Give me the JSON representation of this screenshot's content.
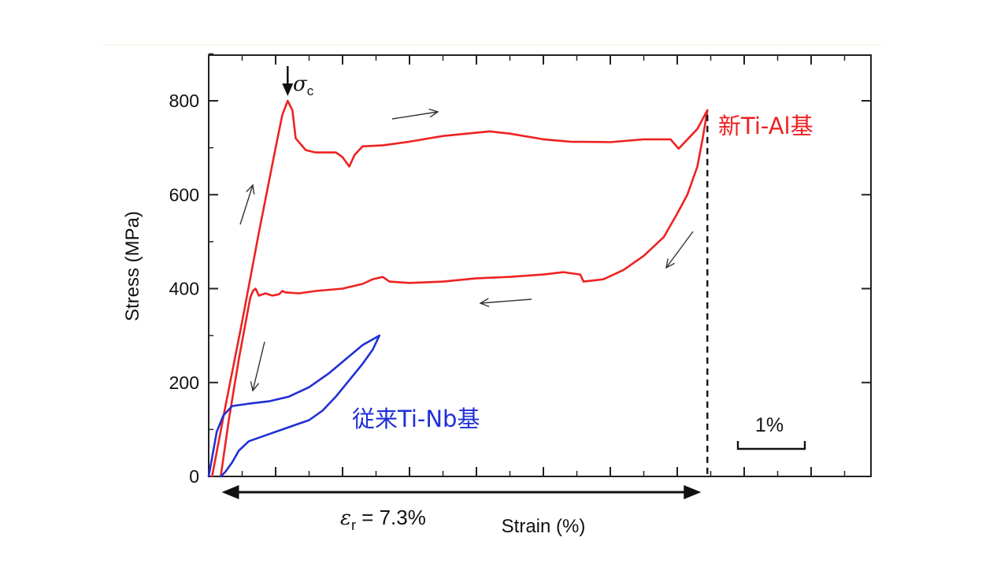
{
  "chart_data": {
    "type": "line",
    "xlabel": "Strain (%)",
    "ylabel": "Stress (MPa)",
    "ylim": [
      0,
      900
    ],
    "yticks": [
      0,
      200,
      400,
      600,
      800
    ],
    "xlim": [
      0,
      10
    ],
    "x_minor_ticks_step": 0.5,
    "x_major_ticks_step": 1,
    "grid": false,
    "scale_bar_label": "1%",
    "sigma_symbol": "σ",
    "sigma_subscript": "c",
    "strain_label_symbol": "ε",
    "strain_label_subscript": "r",
    "strain_label_value": " = 7.3%",
    "strain_span": [
      0.1,
      7.45
    ],
    "unload_line_x": 7.45,
    "series": [
      {
        "name": "新Ti-Al基",
        "color": "#ee2222",
        "points": [
          [
            0.05,
            0
          ],
          [
            0.25,
            150
          ],
          [
            0.5,
            330
          ],
          [
            0.75,
            520
          ],
          [
            1.0,
            700
          ],
          [
            1.1,
            770
          ],
          [
            1.18,
            800
          ],
          [
            1.25,
            780
          ],
          [
            1.3,
            720
          ],
          [
            1.45,
            695
          ],
          [
            1.6,
            690
          ],
          [
            1.9,
            690
          ],
          [
            2.0,
            680
          ],
          [
            2.1,
            660
          ],
          [
            2.18,
            685
          ],
          [
            2.3,
            703
          ],
          [
            2.6,
            705
          ],
          [
            3.0,
            713
          ],
          [
            3.5,
            725
          ],
          [
            4.2,
            735
          ],
          [
            4.5,
            730
          ],
          [
            5.0,
            718
          ],
          [
            5.4,
            713
          ],
          [
            6.0,
            712
          ],
          [
            6.5,
            718
          ],
          [
            6.9,
            718
          ],
          [
            7.02,
            698
          ],
          [
            7.1,
            710
          ],
          [
            7.3,
            740
          ],
          [
            7.45,
            780
          ],
          [
            7.38,
            720
          ],
          [
            7.3,
            660
          ],
          [
            7.15,
            600
          ],
          [
            7.0,
            560
          ],
          [
            6.8,
            510
          ],
          [
            6.5,
            470
          ],
          [
            6.2,
            440
          ],
          [
            5.9,
            420
          ],
          [
            5.6,
            415
          ],
          [
            5.55,
            430
          ],
          [
            5.3,
            435
          ],
          [
            5.0,
            430
          ],
          [
            4.5,
            425
          ],
          [
            4.0,
            422
          ],
          [
            3.5,
            415
          ],
          [
            3.0,
            412
          ],
          [
            2.7,
            415
          ],
          [
            2.6,
            425
          ],
          [
            2.45,
            420
          ],
          [
            2.3,
            410
          ],
          [
            2.0,
            400
          ],
          [
            1.6,
            395
          ],
          [
            1.35,
            390
          ],
          [
            1.15,
            392
          ],
          [
            1.1,
            395
          ],
          [
            1.05,
            388
          ],
          [
            0.95,
            385
          ],
          [
            0.85,
            390
          ],
          [
            0.75,
            385
          ],
          [
            0.7,
            400
          ],
          [
            0.66,
            395
          ],
          [
            0.62,
            380
          ],
          [
            0.45,
            250
          ],
          [
            0.3,
            120
          ],
          [
            0.18,
            0
          ]
        ]
      },
      {
        "name": "従来Ti-Nb基",
        "color": "#1f2fd6",
        "points": [
          [
            0.0,
            0
          ],
          [
            0.05,
            40
          ],
          [
            0.12,
            95
          ],
          [
            0.22,
            130
          ],
          [
            0.35,
            150
          ],
          [
            0.6,
            155
          ],
          [
            0.9,
            160
          ],
          [
            1.2,
            170
          ],
          [
            1.5,
            190
          ],
          [
            1.8,
            220
          ],
          [
            2.05,
            250
          ],
          [
            2.3,
            280
          ],
          [
            2.55,
            300
          ],
          [
            2.45,
            270
          ],
          [
            2.3,
            240
          ],
          [
            2.1,
            205
          ],
          [
            1.9,
            170
          ],
          [
            1.7,
            140
          ],
          [
            1.5,
            120
          ],
          [
            1.2,
            105
          ],
          [
            0.9,
            90
          ],
          [
            0.6,
            75
          ],
          [
            0.45,
            55
          ],
          [
            0.35,
            30
          ],
          [
            0.25,
            10
          ],
          [
            0.18,
            0
          ]
        ]
      }
    ]
  }
}
